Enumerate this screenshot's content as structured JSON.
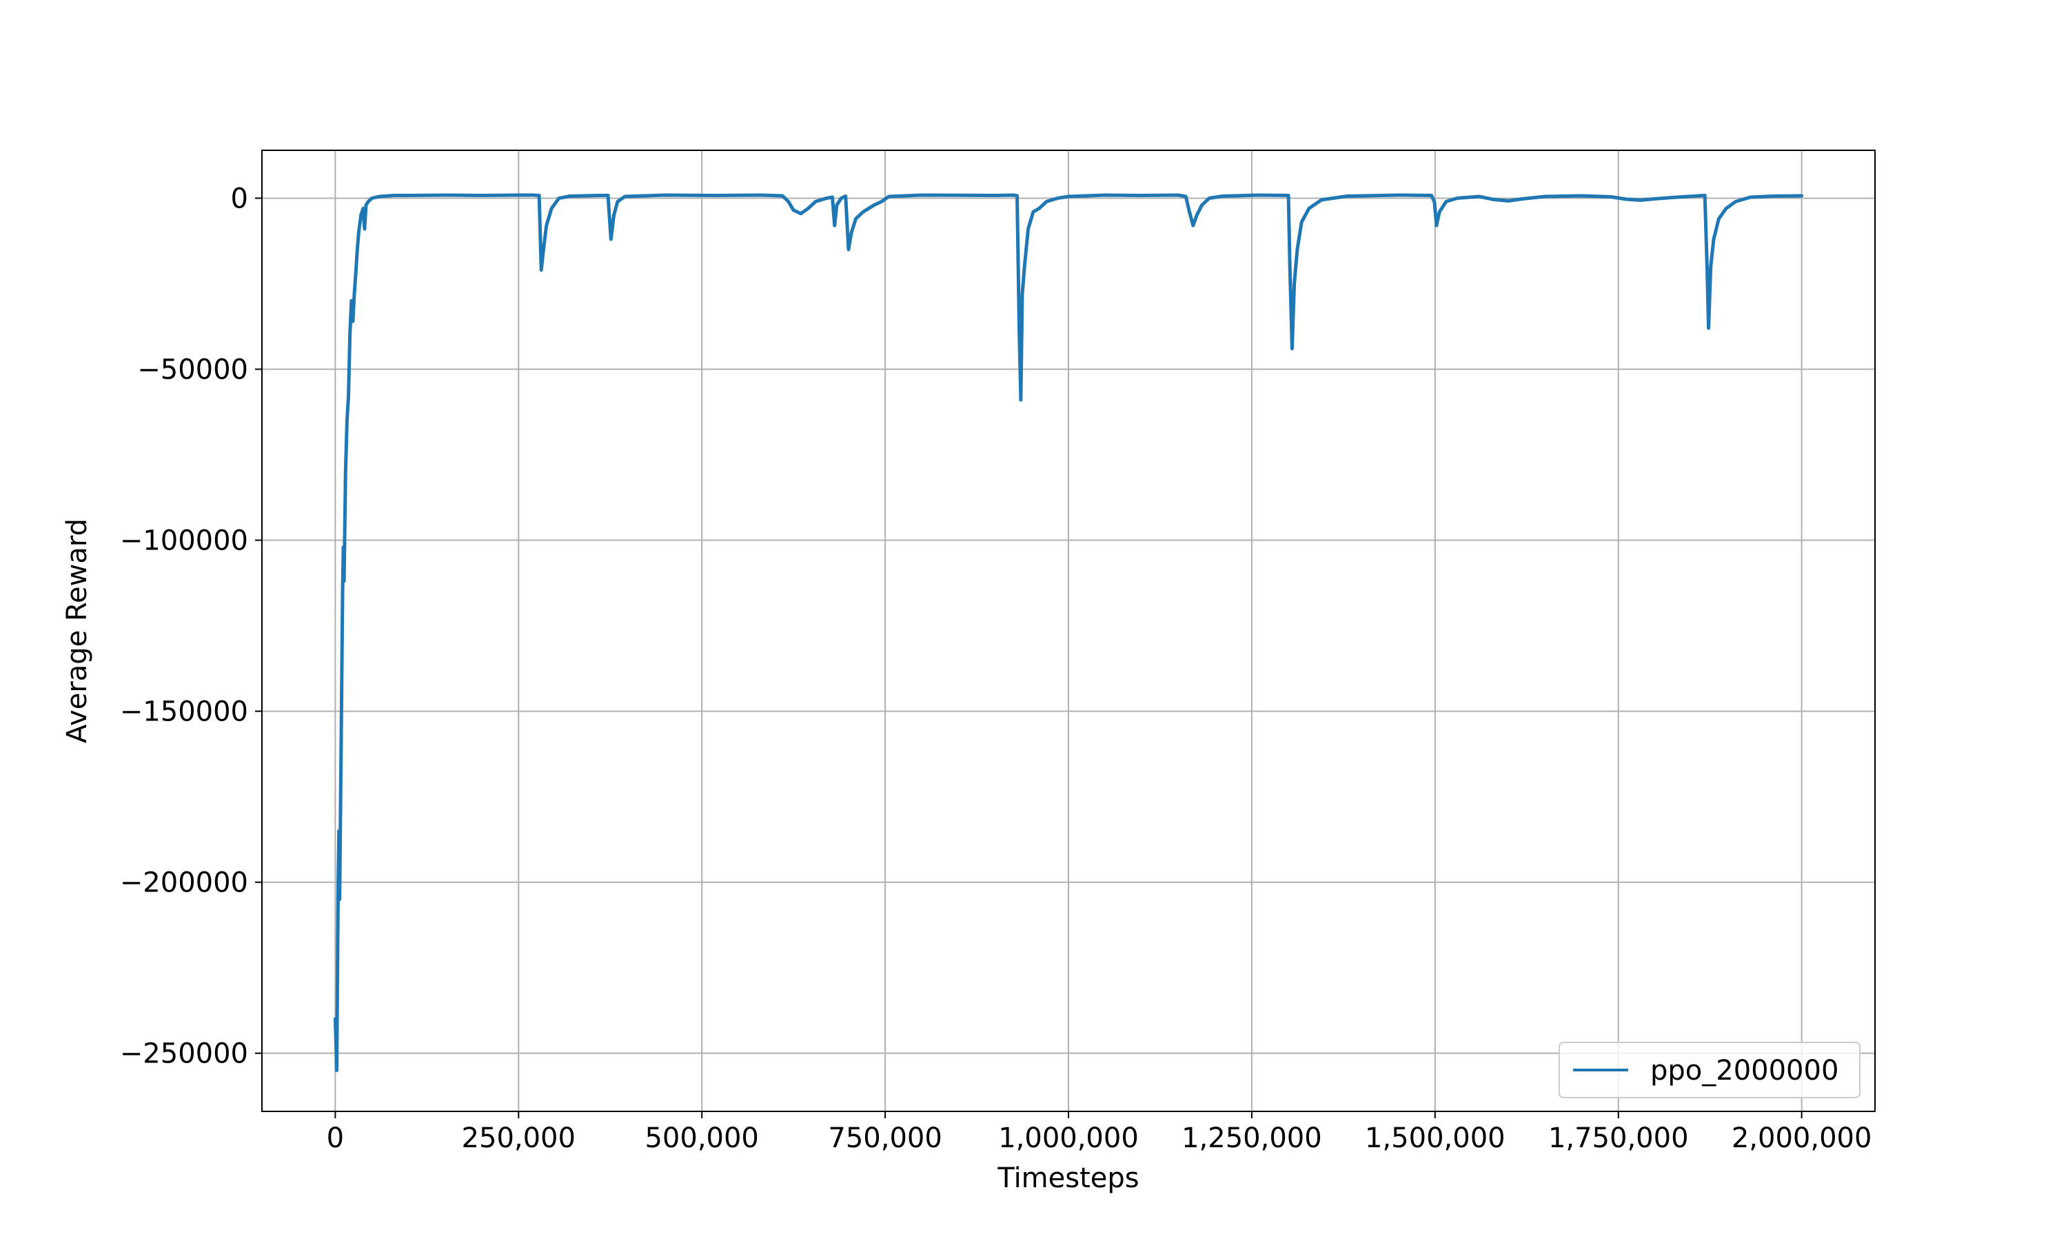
{
  "chart_data": {
    "type": "line",
    "title": "",
    "xlabel": "Timesteps",
    "ylabel": "Average Reward",
    "xlim": [
      -100000,
      2100000
    ],
    "ylim": [
      -267000,
      14000
    ],
    "grid": true,
    "legend_position": "lower-right",
    "x_ticks": [
      {
        "value": 0,
        "label": "0"
      },
      {
        "value": 250000,
        "label": "250,000"
      },
      {
        "value": 500000,
        "label": "500,000"
      },
      {
        "value": 750000,
        "label": "750,000"
      },
      {
        "value": 1000000,
        "label": "1,000,000"
      },
      {
        "value": 1250000,
        "label": "1,250,000"
      },
      {
        "value": 1500000,
        "label": "1,500,000"
      },
      {
        "value": 1750000,
        "label": "1,750,000"
      },
      {
        "value": 2000000,
        "label": "2,000,000"
      }
    ],
    "y_ticks": [
      {
        "value": 0,
        "label": "0"
      },
      {
        "value": -50000,
        "label": "−50000"
      },
      {
        "value": -100000,
        "label": "−100000"
      },
      {
        "value": -150000,
        "label": "−150000"
      },
      {
        "value": -200000,
        "label": "−200000"
      },
      {
        "value": -250000,
        "label": "−250000"
      }
    ],
    "series": [
      {
        "name": "ppo_2000000",
        "color": "#1f77b4",
        "points": [
          [
            0,
            -240000
          ],
          [
            2000,
            -255000
          ],
          [
            4000,
            -200000
          ],
          [
            5000,
            -185000
          ],
          [
            6000,
            -205000
          ],
          [
            8000,
            -160000
          ],
          [
            10000,
            -115000
          ],
          [
            11000,
            -102000
          ],
          [
            12000,
            -112000
          ],
          [
            14000,
            -80000
          ],
          [
            16000,
            -65000
          ],
          [
            18000,
            -58000
          ],
          [
            20000,
            -40000
          ],
          [
            22000,
            -30000
          ],
          [
            24000,
            -36000
          ],
          [
            26000,
            -28000
          ],
          [
            28000,
            -22000
          ],
          [
            30000,
            -15000
          ],
          [
            32000,
            -10000
          ],
          [
            35000,
            -5000
          ],
          [
            38000,
            -3000
          ],
          [
            40000,
            -9000
          ],
          [
            42000,
            -2000
          ],
          [
            45000,
            -1000
          ],
          [
            50000,
            0
          ],
          [
            60000,
            500
          ],
          [
            80000,
            800
          ],
          [
            100000,
            800
          ],
          [
            150000,
            900
          ],
          [
            200000,
            800
          ],
          [
            250000,
            900
          ],
          [
            270000,
            900
          ],
          [
            278000,
            800
          ],
          [
            281000,
            -21000
          ],
          [
            284000,
            -15000
          ],
          [
            288000,
            -8000
          ],
          [
            295000,
            -3000
          ],
          [
            305000,
            0
          ],
          [
            320000,
            600
          ],
          [
            360000,
            800
          ],
          [
            372000,
            800
          ],
          [
            376000,
            -12000
          ],
          [
            380000,
            -5000
          ],
          [
            385000,
            -1000
          ],
          [
            395000,
            500
          ],
          [
            450000,
            900
          ],
          [
            520000,
            800
          ],
          [
            580000,
            900
          ],
          [
            610000,
            700
          ],
          [
            618000,
            -1000
          ],
          [
            625000,
            -3500
          ],
          [
            635000,
            -4500
          ],
          [
            645000,
            -3000
          ],
          [
            655000,
            -1000
          ],
          [
            670000,
            0
          ],
          [
            678000,
            300
          ],
          [
            681000,
            -8000
          ],
          [
            684000,
            -2000
          ],
          [
            690000,
            0
          ],
          [
            696000,
            600
          ],
          [
            700000,
            -15000
          ],
          [
            704000,
            -10000
          ],
          [
            710000,
            -6000
          ],
          [
            720000,
            -4000
          ],
          [
            735000,
            -2000
          ],
          [
            745000,
            -1000
          ],
          [
            755000,
            500
          ],
          [
            800000,
            900
          ],
          [
            900000,
            800
          ],
          [
            925000,
            900
          ],
          [
            930000,
            700
          ],
          [
            933000,
            -40000
          ],
          [
            935000,
            -59000
          ],
          [
            937000,
            -28000
          ],
          [
            940000,
            -20000
          ],
          [
            945000,
            -9000
          ],
          [
            952000,
            -4000
          ],
          [
            960000,
            -3000
          ],
          [
            970000,
            -1000
          ],
          [
            985000,
            0
          ],
          [
            1000000,
            500
          ],
          [
            1050000,
            900
          ],
          [
            1100000,
            800
          ],
          [
            1150000,
            900
          ],
          [
            1160000,
            500
          ],
          [
            1165000,
            -4000
          ],
          [
            1170000,
            -8000
          ],
          [
            1175000,
            -5000
          ],
          [
            1182000,
            -2000
          ],
          [
            1192000,
            0
          ],
          [
            1210000,
            600
          ],
          [
            1260000,
            900
          ],
          [
            1300000,
            800
          ],
          [
            1302000,
            -20000
          ],
          [
            1305000,
            -44000
          ],
          [
            1308000,
            -25000
          ],
          [
            1312000,
            -15000
          ],
          [
            1318000,
            -7000
          ],
          [
            1328000,
            -3000
          ],
          [
            1345000,
            -500
          ],
          [
            1380000,
            600
          ],
          [
            1450000,
            900
          ],
          [
            1495000,
            800
          ],
          [
            1499000,
            -1000
          ],
          [
            1502000,
            -8000
          ],
          [
            1506000,
            -4000
          ],
          [
            1515000,
            -1000
          ],
          [
            1530000,
            0
          ],
          [
            1560000,
            500
          ],
          [
            1580000,
            -400
          ],
          [
            1600000,
            -800
          ],
          [
            1620000,
            -200
          ],
          [
            1650000,
            500
          ],
          [
            1700000,
            700
          ],
          [
            1740000,
            400
          ],
          [
            1760000,
            -300
          ],
          [
            1780000,
            -600
          ],
          [
            1800000,
            -200
          ],
          [
            1830000,
            300
          ],
          [
            1860000,
            700
          ],
          [
            1868000,
            800
          ],
          [
            1871000,
            -20000
          ],
          [
            1873000,
            -38000
          ],
          [
            1876000,
            -20000
          ],
          [
            1880000,
            -12000
          ],
          [
            1887000,
            -6000
          ],
          [
            1897000,
            -3000
          ],
          [
            1910000,
            -1000
          ],
          [
            1930000,
            300
          ],
          [
            1960000,
            600
          ],
          [
            2000000,
            700
          ]
        ]
      }
    ]
  }
}
